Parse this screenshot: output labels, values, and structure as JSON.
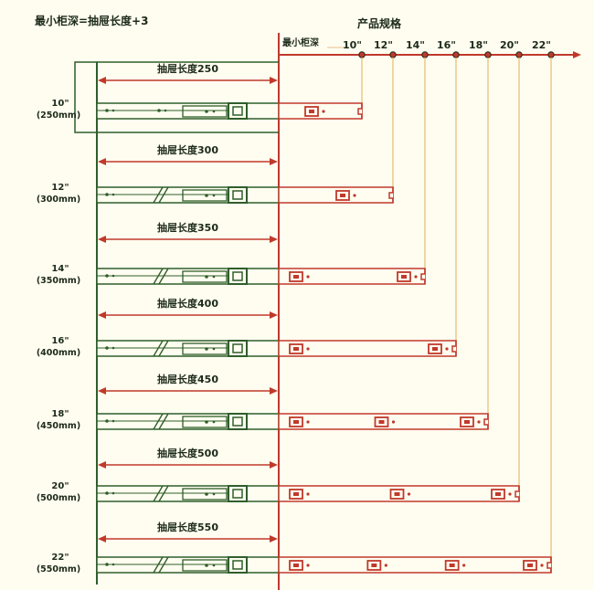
{
  "header": {
    "formula": "最小柜深=抽屉长度+3",
    "spec_title": "产品规格",
    "min_depth_label": "最小柜深"
  },
  "sizes": [
    {
      "inch": "10\"",
      "mm": "(250mm)",
      "length_label": "抽屉长度250",
      "tick": "10\"",
      "red_blocks": 1
    },
    {
      "inch": "12\"",
      "mm": "(300mm)",
      "length_label": "抽屉长度300",
      "tick": "12\"",
      "red_blocks": 1
    },
    {
      "inch": "14\"",
      "mm": "(350mm)",
      "length_label": "抽屉长度350",
      "tick": "14\"",
      "red_blocks": 2
    },
    {
      "inch": "16\"",
      "mm": "(400mm)",
      "length_label": "抽屉长度400",
      "tick": "16\"",
      "red_blocks": 2
    },
    {
      "inch": "18\"",
      "mm": "(450mm)",
      "length_label": "抽屉长度450",
      "tick": "18\"",
      "red_blocks": 3
    },
    {
      "inch": "20\"",
      "mm": "(500mm)",
      "length_label": "抽屉长度500",
      "tick": "20\"",
      "red_blocks": 3
    },
    {
      "inch": "22\"",
      "mm": "(550mm)",
      "length_label": "抽屉长度550",
      "tick": "22\"",
      "red_blocks": 4
    }
  ],
  "colors": {
    "green": "#2f5e2a",
    "red": "#c0392b",
    "dark": "#1c2a1a",
    "background": "#fffdf0"
  }
}
